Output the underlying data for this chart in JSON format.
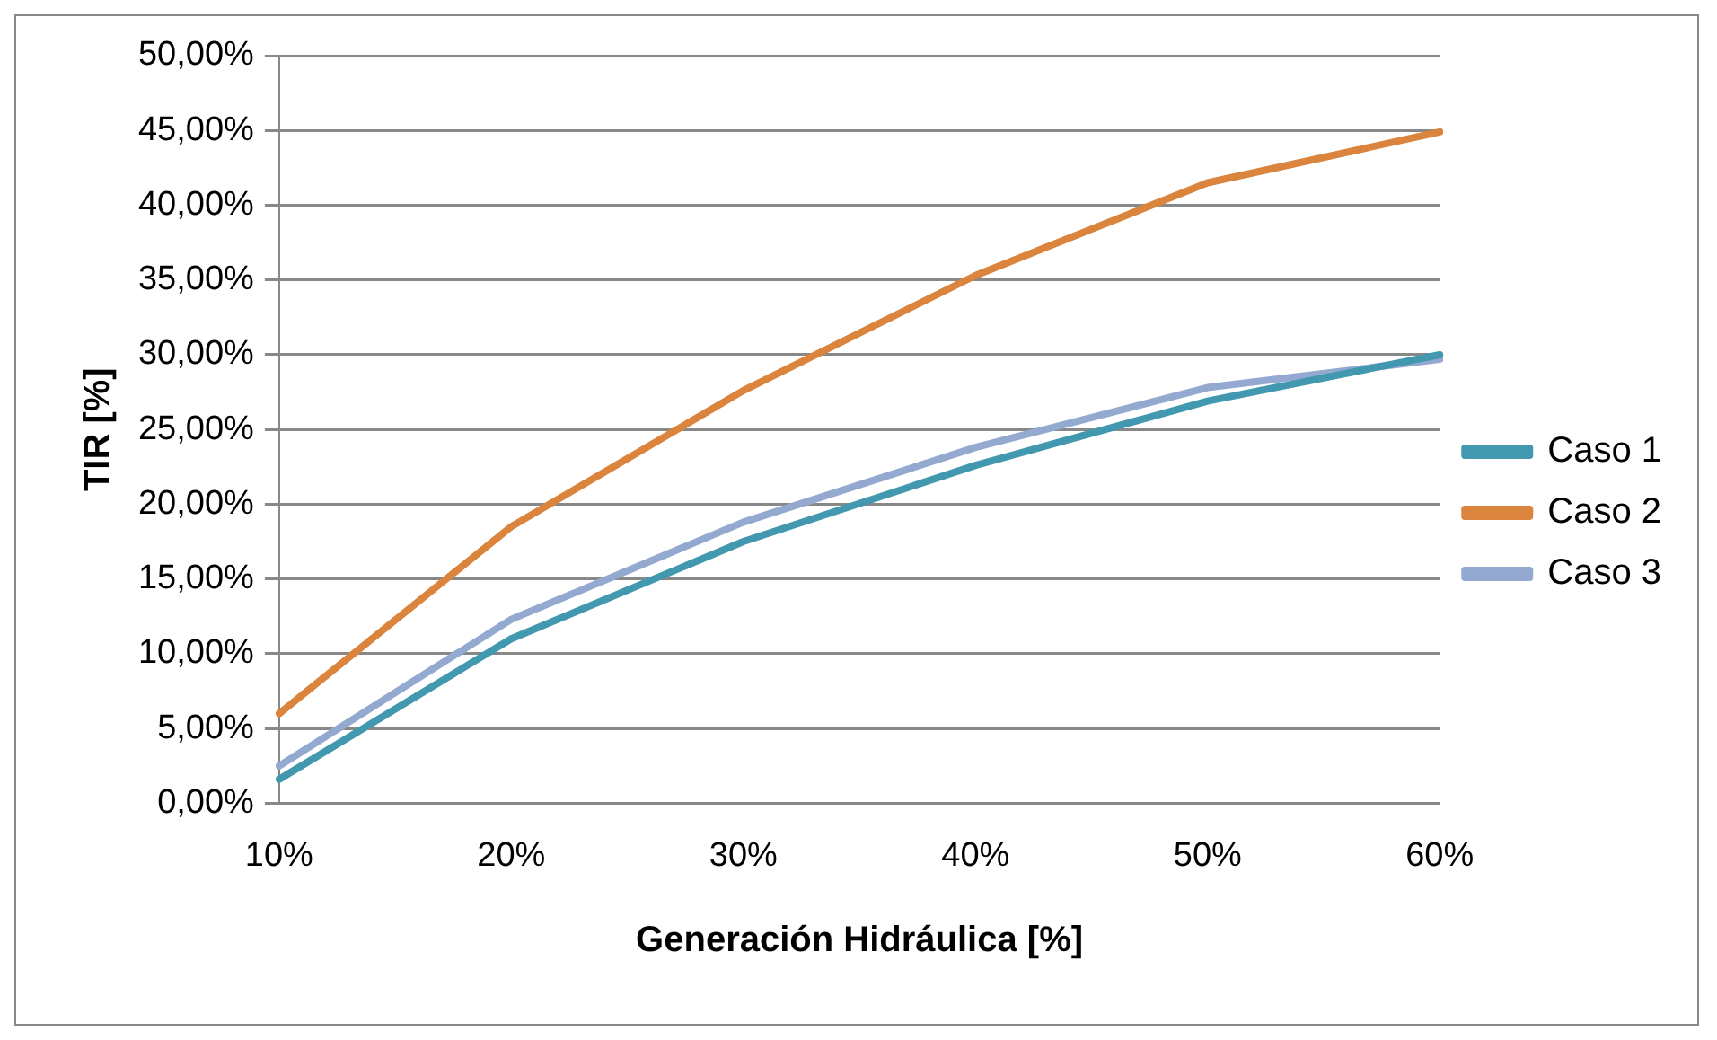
{
  "chart_data": {
    "type": "line",
    "xlabel": "Generación Hidráulica [%]",
    "ylabel": "TIR [%]",
    "categories": [
      "10%",
      "20%",
      "30%",
      "40%",
      "50%",
      "60%"
    ],
    "series": [
      {
        "name": "Caso 1",
        "color": "#4198af",
        "values": [
          1.6,
          11.0,
          17.5,
          22.6,
          26.9,
          30.0
        ]
      },
      {
        "name": "Caso 2",
        "color": "#db843d",
        "values": [
          6.0,
          18.5,
          27.6,
          35.3,
          41.5,
          44.9
        ]
      },
      {
        "name": "Caso 3",
        "color": "#93a9cf",
        "values": [
          2.5,
          12.3,
          18.8,
          23.8,
          27.8,
          29.7
        ]
      }
    ],
    "ylim": [
      0,
      50
    ],
    "yticks": [
      {
        "value": 0,
        "label": "0,00%"
      },
      {
        "value": 5,
        "label": "5,00%"
      },
      {
        "value": 10,
        "label": "10,00%"
      },
      {
        "value": 15,
        "label": "15,00%"
      },
      {
        "value": 20,
        "label": "20,00%"
      },
      {
        "value": 25,
        "label": "25,00%"
      },
      {
        "value": 30,
        "label": "30,00%"
      },
      {
        "value": 35,
        "label": "35,00%"
      },
      {
        "value": 40,
        "label": "40,00%"
      },
      {
        "value": 45,
        "label": "45,00%"
      },
      {
        "value": 50,
        "label": "50,00%"
      }
    ],
    "grid": "y",
    "legend": "right",
    "marker": "none",
    "line_style": "solid"
  }
}
